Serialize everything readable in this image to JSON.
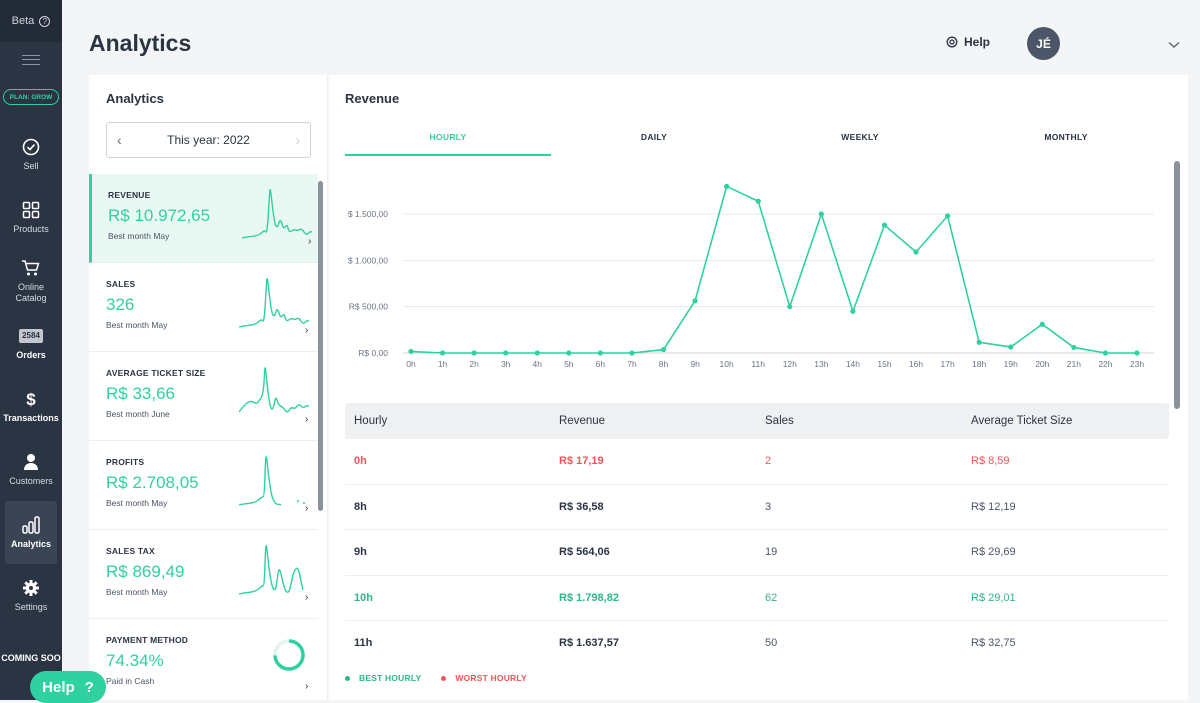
{
  "sidebar": {
    "beta": "Beta",
    "beta_icon": "question-icon",
    "plan": "PLAN: GROW",
    "items": [
      {
        "label": "Sell",
        "icon": "check-circle-icon"
      },
      {
        "label": "Products",
        "icon": "grid-icon"
      },
      {
        "label": "Online Catalog",
        "icon": "cart-icon"
      },
      {
        "label": "Orders",
        "icon": "orders-badge",
        "badge": "2584"
      },
      {
        "label": "Transactions",
        "icon": "dollar-icon"
      },
      {
        "label": "Customers",
        "icon": "user-icon"
      },
      {
        "label": "Analytics",
        "icon": "bar-chart-icon"
      },
      {
        "label": "Settings",
        "icon": "gear-icon"
      }
    ],
    "coming": "COMING SOO"
  },
  "help_fab": {
    "label": "Help",
    "icon": "?"
  },
  "header": {
    "title": "Analytics",
    "help": "Help",
    "avatar": "JÉ"
  },
  "left": {
    "title": "Analytics",
    "year": "This year: 2022",
    "metrics": [
      {
        "label": "REVENUE",
        "value": "R$ 10.972,65",
        "best": "Best month May"
      },
      {
        "label": "SALES",
        "value": "326",
        "best": "Best month May"
      },
      {
        "label": "AVERAGE TICKET SIZE",
        "value": "R$ 33,66",
        "best": "Best month June"
      },
      {
        "label": "PROFITS",
        "value": "R$ 2.708,05",
        "best": "Best month May"
      },
      {
        "label": "SALES TAX",
        "value": "R$ 869,49",
        "best": "Best month May"
      },
      {
        "label": "PAYMENT METHOD",
        "value": "74.34%",
        "best": "Paid in Cash"
      }
    ]
  },
  "right": {
    "title": "Revenue",
    "tabs": [
      "HOURLY",
      "DAILY",
      "WEEKLY",
      "MONTHLY"
    ],
    "legend_best": "BEST HOURLY",
    "legend_worst": "WORST HOURLY",
    "table": {
      "headers": [
        "Hourly",
        "Revenue",
        "Sales",
        "Average Ticket Size"
      ],
      "rows": [
        [
          "0h",
          "R$ 17,19",
          "2",
          "R$ 8,59"
        ],
        [
          "8h",
          "R$ 36,58",
          "3",
          "R$ 12,19"
        ],
        [
          "9h",
          "R$ 564,06",
          "19",
          "R$ 29,69"
        ],
        [
          "10h",
          "R$ 1.798,82",
          "62",
          "R$ 29,01"
        ],
        [
          "11h",
          "R$ 1.637,57",
          "50",
          "R$ 32,75"
        ]
      ]
    }
  },
  "colors": {
    "accent": "#2fd1a1",
    "worst": "#f2545b",
    "sidebar": "#2b3443"
  },
  "chart_data": {
    "type": "line",
    "x": [
      "0h",
      "1h",
      "2h",
      "3h",
      "4h",
      "5h",
      "6h",
      "7h",
      "8h",
      "9h",
      "10h",
      "11h",
      "12h",
      "13h",
      "14h",
      "15h",
      "16h",
      "17h",
      "18h",
      "19h",
      "20h",
      "21h",
      "22h",
      "23h"
    ],
    "y_tick_labels": [
      "R$ 0,00",
      "R$ 500,00",
      "$ 1.000,00",
      "$ 1.500,00"
    ],
    "y_ticks": [
      0,
      500,
      1000,
      1500
    ],
    "series": [
      {
        "values": [
          17,
          0,
          0,
          0,
          0,
          0,
          0,
          0,
          37,
          564,
          1799,
          1638,
          500,
          1500,
          450,
          1380,
          1090,
          1480,
          115,
          65,
          310,
          60,
          0,
          0
        ]
      }
    ],
    "ylim": [
      0,
      1850
    ],
    "grid": true
  }
}
